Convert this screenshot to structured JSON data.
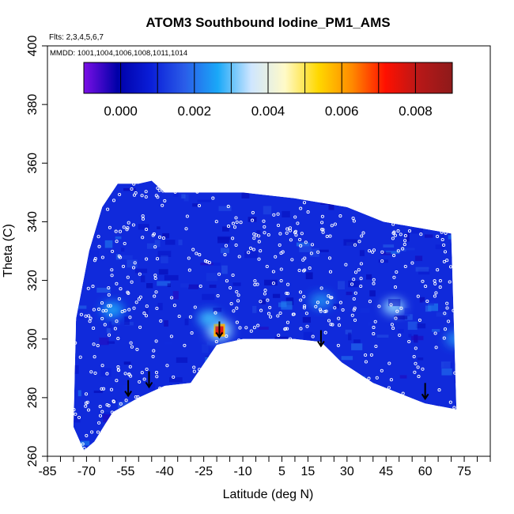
{
  "chart_data": {
    "type": "heatmap",
    "title": "ATOM3 Southbound Iodine_PM1_AMS",
    "flights_note": "Flts: 2,3,4,5,6,7",
    "dates_note": "MMDD: 1001,1004,1006,1008,1011,1014",
    "xlabel": "Latitude (deg N)",
    "ylabel": "Theta (C)",
    "xlim": [
      -85,
      85
    ],
    "ylim": [
      260,
      400
    ],
    "x_ticks": [
      "-85",
      "-70",
      "-55",
      "-40",
      "-25",
      "-10",
      "5",
      "15",
      "30",
      "45",
      "60",
      "75"
    ],
    "x_tick_values": [
      -85,
      -70,
      -55,
      -40,
      -25,
      -10,
      5,
      15,
      30,
      45,
      60,
      75
    ],
    "y_ticks": [
      "260",
      "280",
      "300",
      "320",
      "340",
      "360",
      "380",
      "400"
    ],
    "y_tick_values": [
      260,
      280,
      300,
      320,
      340,
      360,
      380,
      400
    ],
    "colorbar": {
      "range": [
        -0.001,
        0.009
      ],
      "tick_labels": [
        "0.000",
        "0.002",
        "0.004",
        "0.006",
        "0.008"
      ],
      "tick_values": [
        0.0,
        0.002,
        0.004,
        0.006,
        0.008
      ],
      "stops": [
        "#7b0fe6",
        "#0000a8",
        "#0a1ed8",
        "#2a5ce8",
        "#1aa8f8",
        "#cfe6ff",
        "#fffac8",
        "#ffd800",
        "#ff8a00",
        "#ff1000",
        "#b81818",
        "#8e1a1a"
      ]
    },
    "background_value": 0.001,
    "hotspots": [
      {
        "lat": -19,
        "theta": 303,
        "value": 0.0075
      },
      {
        "lat": 48,
        "theta": 311,
        "value": 0.0032
      },
      {
        "lat": -23,
        "theta": 307,
        "value": 0.0028
      },
      {
        "lat": -60,
        "theta": 310,
        "value": 0.0025
      },
      {
        "lat": 72,
        "theta": 300,
        "value": 0.0022
      },
      {
        "lat": 20,
        "theta": 313,
        "value": 0.0022
      }
    ],
    "coverage_top": [
      {
        "lat": -74,
        "theta": 307
      },
      {
        "lat": -69,
        "theta": 330
      },
      {
        "lat": -64,
        "theta": 345
      },
      {
        "lat": -58,
        "theta": 353
      },
      {
        "lat": -50,
        "theta": 353
      },
      {
        "lat": -45,
        "theta": 354
      },
      {
        "lat": -40,
        "theta": 350
      },
      {
        "lat": -10,
        "theta": 350
      },
      {
        "lat": 10,
        "theta": 348
      },
      {
        "lat": 30,
        "theta": 345
      },
      {
        "lat": 44,
        "theta": 340
      },
      {
        "lat": 70,
        "theta": 336
      }
    ],
    "coverage_bottom": [
      {
        "lat": 72,
        "theta": 276
      },
      {
        "lat": 60,
        "theta": 278
      },
      {
        "lat": 40,
        "theta": 285
      },
      {
        "lat": 28,
        "theta": 292
      },
      {
        "lat": 20,
        "theta": 299
      },
      {
        "lat": 10,
        "theta": 300
      },
      {
        "lat": -10,
        "theta": 300
      },
      {
        "lat": -20,
        "theta": 298
      },
      {
        "lat": -30,
        "theta": 285
      },
      {
        "lat": -40,
        "theta": 284
      },
      {
        "lat": -50,
        "theta": 280
      },
      {
        "lat": -60,
        "theta": 275
      },
      {
        "lat": -67,
        "theta": 265
      },
      {
        "lat": -71,
        "theta": 262
      },
      {
        "lat": -75,
        "theta": 270
      }
    ],
    "tropopause_arrows": [
      {
        "lat": -54,
        "theta": 286
      },
      {
        "lat": -46,
        "theta": 289
      },
      {
        "lat": -19,
        "theta": 306
      },
      {
        "lat": 20,
        "theta": 303
      },
      {
        "lat": 60,
        "theta": 285
      }
    ]
  }
}
